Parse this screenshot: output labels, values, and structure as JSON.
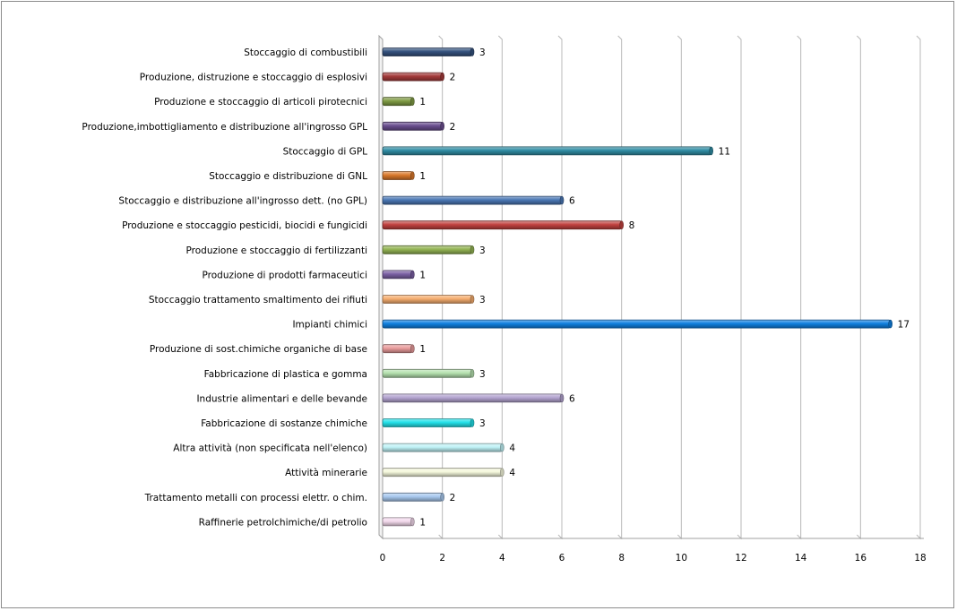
{
  "chart_data": {
    "type": "bar",
    "orientation": "horizontal",
    "title": "",
    "xlabel": "",
    "ylabel": "",
    "xlim": [
      0,
      18
    ],
    "x_ticks": [
      "0",
      "2",
      "4",
      "6",
      "8",
      "10",
      "12",
      "14",
      "16",
      "18"
    ],
    "grid": "vertical",
    "legend": "none",
    "categories": [
      "Stoccaggio di combustibili",
      "Produzione, distruzione e stoccaggio di esplosivi",
      "Produzione e stoccaggio di articoli pirotecnici",
      "Produzione,imbottigliamento  e distribuzione all'ingrosso GPL",
      "Stoccaggio di GPL",
      "Stoccaggio e distribuzione di GNL",
      "Stoccaggio e distribuzione all'ingrosso dett. (no GPL)",
      "Produzione e stoccaggio  pesticidi, biocidi e fungicidi",
      "Produzione e stoccaggio  di fertilizzanti",
      "Produzione di prodotti farmaceutici",
      "Stoccaggio trattamento  smaltimento  dei rifiuti",
      "Impianti  chimici",
      "Produzione di sost.chimiche  organiche di base",
      "Fabbricazione di plastica  e gomma",
      "Industrie alimentari  e delle bevande",
      "Fabbricazione di sostanze  chimiche",
      "Altra attività  (non specificata nell'elenco)",
      "Attività minerarie",
      "Trattamento  metalli con processi elettr. o chim.",
      "Raffinerie petrolchimiche/di petrolio"
    ],
    "values": [
      3,
      2,
      1,
      2,
      11,
      1,
      6,
      8,
      3,
      1,
      3,
      17,
      1,
      3,
      6,
      3,
      4,
      4,
      2,
      1
    ],
    "value_labels": [
      "3",
      "2",
      "1",
      "2",
      "11",
      "1",
      "6",
      "8",
      "3",
      "1",
      "3",
      "17",
      "1",
      "3",
      "6",
      "3",
      "4",
      "4",
      "2",
      "1"
    ],
    "colors": [
      "#34527e",
      "#a33a3a",
      "#7f9b44",
      "#6a4e8f",
      "#2f8ca3",
      "#d9782b",
      "#4a77b4",
      "#c0413f",
      "#93b454",
      "#7a5fa3",
      "#f5ad6e",
      "#1080e0",
      "#e99b9b",
      "#b6e2b0",
      "#b3a3cf",
      "#22e0e8",
      "#bff2f6",
      "#f5f8dc",
      "#a8c8ee",
      "#f3d9ec"
    ]
  }
}
